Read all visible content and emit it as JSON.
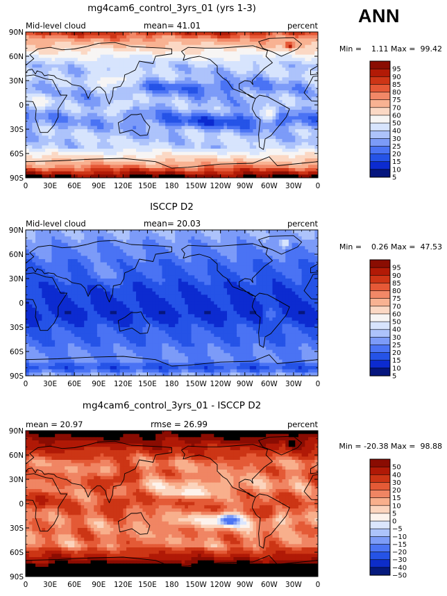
{
  "season_label": "ANN",
  "colors": {
    "model_scale": [
      "#06167e",
      "#0c2bd0",
      "#2553e7",
      "#4a73f4",
      "#7c9bf8",
      "#adc3fb",
      "#d7e4fd",
      "#f7f5f4",
      "#fbd8c4",
      "#f8b292",
      "#f28867",
      "#e65937",
      "#ce3516",
      "#b21a06",
      "#8a0d02"
    ],
    "diff_scale": [
      "#061a7d",
      "#0d2dc9",
      "#2553e6",
      "#4b74f3",
      "#7d9cf7",
      "#adc4fb",
      "#dbe6fd",
      "#fdf3ec",
      "#fbd4bd",
      "#f8af8c",
      "#f08563",
      "#e45a36",
      "#cc3515",
      "#b01906",
      "#8a0c02"
    ]
  },
  "map_axes": {
    "lat_ticks": [
      "90N",
      "60N",
      "30N",
      "0",
      "30S",
      "60S",
      "90S"
    ],
    "lon_ticks": [
      "0",
      "30E",
      "60E",
      "90E",
      "120E",
      "150E",
      "180",
      "150W",
      "120W",
      "90W",
      "60W",
      "30W",
      "0"
    ]
  },
  "chart_data": [
    {
      "type": "heatmap",
      "title": "mg4cam6_control_3yrs_01 (yrs 1-3)",
      "left_label": "Mid-level cloud",
      "center_label": "mean=  41.01",
      "units": "percent",
      "min_max": "Min =    1.11 Max =  99.42",
      "variable": "Mid-level cloud",
      "mean": 41.01,
      "min": 1.11,
      "max": 99.42,
      "levels": [
        5,
        10,
        15,
        20,
        25,
        30,
        40,
        50,
        60,
        70,
        75,
        80,
        85,
        90,
        95
      ],
      "level_labels": [
        "95",
        "90",
        "85",
        "80",
        "75",
        "70",
        "60",
        "50",
        "40",
        "30",
        "25",
        "20",
        "15",
        "10",
        "5"
      ],
      "field": "model"
    },
    {
      "type": "heatmap",
      "title": "ISCCP D2",
      "left_label": "Mid-level cloud",
      "center_label": "mean=  20.03",
      "units": "percent",
      "min_max": "Min =    0.26 Max =  47.53",
      "variable": "Mid-level cloud",
      "mean": 20.03,
      "min": 0.26,
      "max": 47.53,
      "levels": [
        5,
        10,
        15,
        20,
        25,
        30,
        40,
        50,
        60,
        70,
        75,
        80,
        85,
        90,
        95
      ],
      "level_labels": [
        "95",
        "90",
        "85",
        "80",
        "75",
        "70",
        "60",
        "50",
        "40",
        "30",
        "25",
        "20",
        "15",
        "10",
        "5"
      ],
      "field": "obs"
    },
    {
      "type": "heatmap",
      "title": "mg4cam6_control_3yrs_01 - ISCCP D2",
      "left_label": "mean =  20.97",
      "center_label": "rmse =  26.99",
      "units": "percent",
      "min_max": "Min = -20.38 Max =  98.88",
      "mean": 20.97,
      "rmse": 26.99,
      "min": -20.38,
      "max": 98.88,
      "levels": [
        -50,
        -40,
        -30,
        -20,
        -15,
        -10,
        -5,
        0,
        5,
        10,
        15,
        20,
        30,
        40,
        50
      ],
      "level_labels": [
        "50",
        "40",
        "30",
        "20",
        "15",
        "10",
        "5",
        "0",
        "−5",
        "−10",
        "−15",
        "−20",
        "−30",
        "−40",
        "−50"
      ],
      "field": "diff"
    }
  ]
}
